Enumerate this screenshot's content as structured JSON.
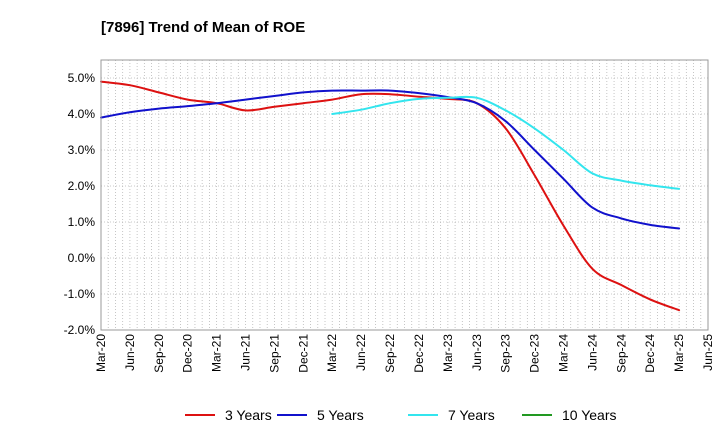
{
  "chart_data": {
    "type": "line",
    "title": "[7896]  Trend of Mean of ROE",
    "xlabel": "",
    "ylabel": "",
    "ylim": [
      -2.0,
      5.5
    ],
    "grid": true,
    "legend_position": "bottom",
    "y_ticks": [
      5.0,
      4.0,
      3.0,
      2.0,
      1.0,
      0.0,
      -1.0,
      -2.0
    ],
    "y_tick_labels": [
      "5.0%",
      "4.0%",
      "3.0%",
      "2.0%",
      "1.0%",
      "0.0%",
      "-1.0%",
      "-2.0%"
    ],
    "categories": [
      "Mar-20",
      "Jun-20",
      "Sep-20",
      "Dec-20",
      "Mar-21",
      "Jun-21",
      "Sep-21",
      "Dec-21",
      "Mar-22",
      "Jun-22",
      "Sep-22",
      "Dec-22",
      "Mar-23",
      "Jun-23",
      "Sep-23",
      "Dec-23",
      "Mar-24",
      "Jun-24",
      "Sep-24",
      "Dec-24",
      "Mar-25",
      "Jun-25"
    ],
    "series": [
      {
        "name": "3 Years",
        "color": "#dd1111",
        "values": [
          4.9,
          4.8,
          4.6,
          4.4,
          4.3,
          4.1,
          4.2,
          4.3,
          4.4,
          4.55,
          4.55,
          4.48,
          4.42,
          4.3,
          3.6,
          2.3,
          0.9,
          -0.3,
          -0.75,
          -1.15,
          -1.45,
          null
        ]
      },
      {
        "name": "5 Years",
        "color": "#1111cc",
        "values": [
          3.9,
          4.05,
          4.15,
          4.22,
          4.3,
          4.4,
          4.5,
          4.6,
          4.65,
          4.65,
          4.65,
          4.58,
          4.47,
          4.3,
          3.8,
          3.0,
          2.2,
          1.4,
          1.1,
          0.92,
          0.82,
          null
        ]
      },
      {
        "name": "7 Years",
        "color": "#33e5ee",
        "values": [
          null,
          null,
          null,
          null,
          null,
          null,
          null,
          null,
          4.0,
          4.12,
          4.3,
          4.42,
          4.45,
          4.45,
          4.1,
          3.6,
          3.0,
          2.35,
          2.15,
          2.02,
          1.92,
          null
        ]
      },
      {
        "name": "10 Years",
        "color": "#229922",
        "values": [
          null,
          null,
          null,
          null,
          null,
          null,
          null,
          null,
          null,
          null,
          null,
          null,
          null,
          null,
          null,
          null,
          null,
          null,
          null,
          null,
          null,
          null
        ]
      }
    ]
  }
}
